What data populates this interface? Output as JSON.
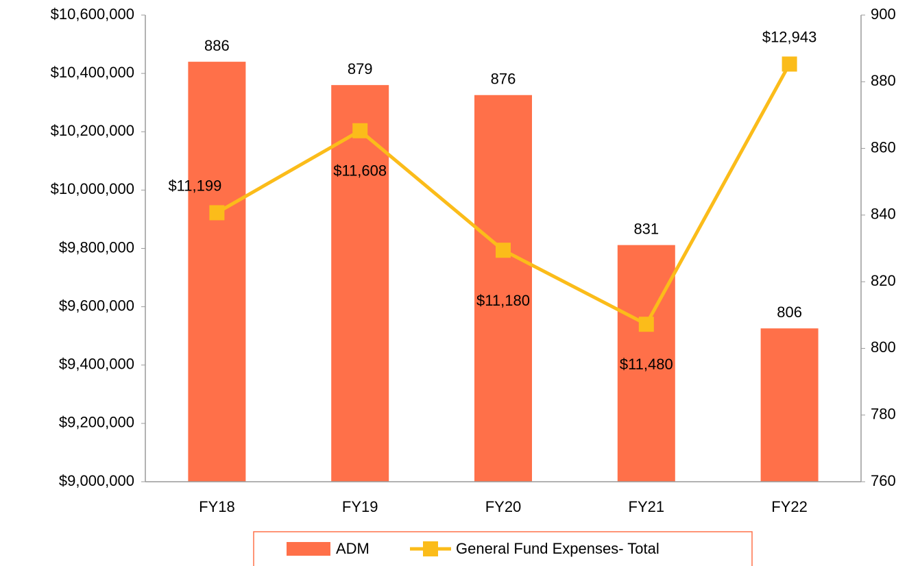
{
  "chart_data": {
    "type": "bar_line",
    "categories": [
      "FY18",
      "FY19",
      "FY20",
      "FY21",
      "FY22"
    ],
    "series": [
      {
        "name": "ADM",
        "type": "bar",
        "axis": "y2",
        "color": "#ff7049",
        "values": [
          886,
          879,
          876,
          831,
          806
        ]
      },
      {
        "name": "General Fund Expenses- Total",
        "type": "line",
        "axis": "y",
        "color": "#fbbc1a",
        "values": [
          9922314,
          10203432,
          9793680,
          9539880,
          10432058
        ],
        "annotations": [
          "$11,199",
          "$11,608",
          "$11,180",
          "$11,480",
          "$12,943"
        ]
      }
    ],
    "ylim": [
      9000000,
      10600000
    ],
    "yticks": [
      {
        "value": 9000000,
        "label": "$9,000,000"
      },
      {
        "value": 9200000,
        "label": "$9,200,000"
      },
      {
        "value": 9400000,
        "label": "$9,400,000"
      },
      {
        "value": 9600000,
        "label": "$9,600,000"
      },
      {
        "value": 9800000,
        "label": "$9,800,000"
      },
      {
        "value": 10000000,
        "label": "$10,000,000"
      },
      {
        "value": 10200000,
        "label": "$10,200,000"
      },
      {
        "value": 10400000,
        "label": "$10,400,000"
      },
      {
        "value": 10600000,
        "label": "$10,600,000"
      }
    ],
    "y2lim": [
      760,
      900
    ],
    "y2ticks": [
      760,
      780,
      800,
      820,
      840,
      860,
      880,
      900
    ],
    "grid": false
  }
}
